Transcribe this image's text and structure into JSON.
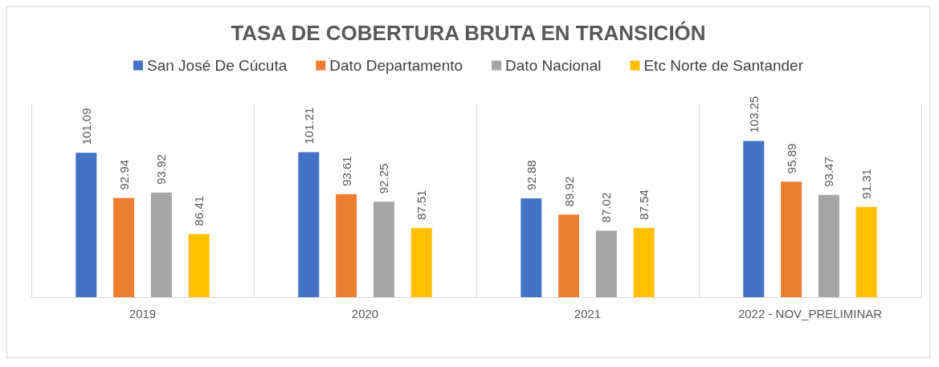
{
  "chart_data": {
    "type": "bar",
    "title": "TASA DE COBERTURA BRUTA EN TRANSICIÓN",
    "categories": [
      "2019",
      "2020",
      "2021",
      "2022 - NOV_PRELIMINAR"
    ],
    "series": [
      {
        "name": "San José De Cúcuta",
        "color": "#4472c4",
        "values": [
          101.09,
          101.21,
          92.88,
          103.25
        ]
      },
      {
        "name": "Dato Departamento",
        "color": "#ed7d31",
        "values": [
          92.94,
          93.61,
          89.92,
          95.89
        ]
      },
      {
        "name": "Dato Nacional",
        "color": "#a5a5a5",
        "values": [
          93.92,
          92.25,
          87.02,
          93.47
        ]
      },
      {
        "name": "Etc Norte de Santander",
        "color": "#ffc000",
        "values": [
          86.41,
          87.51,
          87.54,
          91.31
        ]
      }
    ],
    "ylim": [
      75,
      110
    ],
    "tick_labels": "x",
    "data_labels": true,
    "grid": "x",
    "legend": "top"
  }
}
